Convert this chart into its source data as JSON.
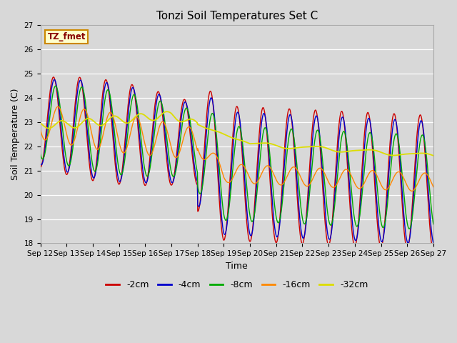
{
  "title": "Tonzi Soil Temperatures Set C",
  "xlabel": "Time",
  "ylabel": "Soil Temperature (C)",
  "ylim": [
    18.0,
    27.0
  ],
  "yticks": [
    18.0,
    19.0,
    20.0,
    21.0,
    22.0,
    23.0,
    24.0,
    25.0,
    26.0,
    27.0
  ],
  "xtick_labels": [
    "Sep 12",
    "Sep 13",
    "Sep 14",
    "Sep 15",
    "Sep 16",
    "Sep 17",
    "Sep 18",
    "Sep 19",
    "Sep 20",
    "Sep 21",
    "Sep 22",
    "Sep 23",
    "Sep 24",
    "Sep 25",
    "Sep 26",
    "Sep 27"
  ],
  "n_days": 15,
  "line_colors": {
    "-2cm": "#cc0000",
    "-4cm": "#0000cc",
    "-8cm": "#00aa00",
    "-16cm": "#ff8800",
    "-32cm": "#dddd00"
  },
  "legend_label_box_color": "#ffffcc",
  "legend_label_box_edge": "#cc8800",
  "legend_label_text": "TZ_fmet",
  "legend_label_text_color": "#880000",
  "plot_bg_color": "#d8d8d8",
  "fig_bg_color": "#d8d8d8",
  "grid_color": "#ffffff",
  "title_fontsize": 11,
  "axis_label_fontsize": 9,
  "tick_fontsize": 7.5
}
